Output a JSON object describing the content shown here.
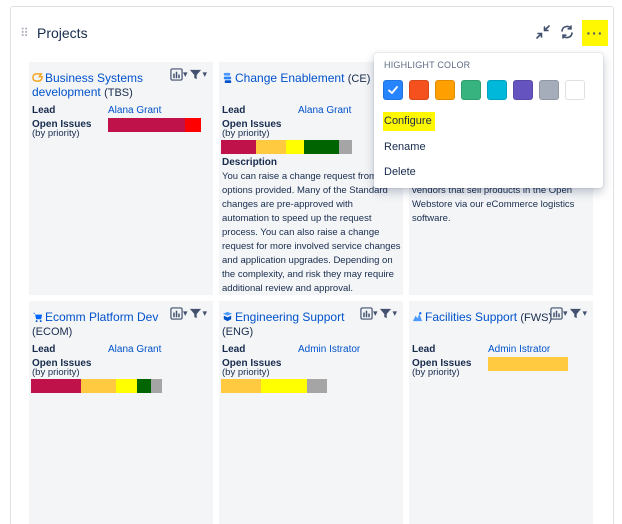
{
  "panel": {
    "title": "Projects",
    "drag_glyph": "⠿",
    "more_label": "···"
  },
  "cards": [
    {
      "name": "Business Systems development",
      "key": "(TBS)",
      "icon": "project-icon",
      "icon_color": "#f5a623",
      "lead_label": "Lead",
      "lead": "Alana Grant",
      "open_issues_label": "Open Issues",
      "by_priority": "(by priority)",
      "priority_bar": [
        {
          "color": "#c0124a",
          "share": 0.83
        },
        {
          "color": "#ff0000",
          "share": 0.17
        }
      ]
    },
    {
      "name": "Change Enablement",
      "key": "(CE)",
      "icon": "service-desk-icon",
      "icon_color": "#2684ff",
      "lead_label": "Lead",
      "lead": "Alana Grant",
      "open_issues_label": "Open Issues",
      "by_priority": "(by priority)",
      "priority_bar": [
        {
          "color": "#c0124a",
          "share": 0.27
        },
        {
          "color": "#ffc940",
          "share": 0.23
        },
        {
          "color": "#ffff00",
          "share": 0.13
        },
        {
          "color": "#006400",
          "share": 0.27
        },
        {
          "color": "#a5a5a5",
          "share": 0.1
        }
      ],
      "description_label": "Description",
      "description_lines": [
        "You can raise a change request from",
        "options provided. Many of the Standard",
        "changes are pre-approved with",
        "automation to speed up the request",
        "process. You can also raise a change",
        "request for more involved service changes",
        "and application upgrades. Depending on",
        "the complexity, and risk they may require",
        "additional review and approval."
      ]
    },
    {
      "description_lines": [
        "vendors that sell products in the Open",
        "Webstore via our eCommerce logistics",
        "software."
      ]
    },
    {
      "name": "Ecomm Platform Dev",
      "key": "(ECOM)",
      "icon": "shopping-icon",
      "icon_color": "#0065ff",
      "lead_label": "Lead",
      "lead": "Alana Grant",
      "open_issues_label": "Open Issues",
      "by_priority": "(by priority)",
      "priority_bar": [
        {
          "color": "#c0124a",
          "share": 0.38
        },
        {
          "color": "#ffc940",
          "share": 0.27
        },
        {
          "color": "#ffff00",
          "share": 0.16
        },
        {
          "color": "#006400",
          "share": 0.11
        },
        {
          "color": "#a5a5a5",
          "share": 0.08
        }
      ]
    },
    {
      "name": "Engineering Support",
      "key": "(ENG)",
      "icon": "engineering-icon",
      "icon_color": "#0052cc",
      "lead_label": "Lead",
      "lead": "Admin Istrator",
      "open_issues_label": "Open Issues",
      "by_priority": "(by priority)",
      "priority_bar": [
        {
          "color": "#ffc940",
          "share": 0.38
        },
        {
          "color": "#ffff00",
          "share": 0.43
        },
        {
          "color": "#a5a5a5",
          "share": 0.19
        }
      ]
    },
    {
      "name": "Facilities Support",
      "key": "(FWS)",
      "icon": "facilities-icon",
      "icon_color": "#4c9aff",
      "lead_label": "Lead",
      "lead": "Admin Istrator",
      "open_issues_label": "Open Issues",
      "by_priority": "(by priority)",
      "priority_bar": [
        {
          "color": "#ffc940",
          "share": 1.0
        }
      ]
    }
  ],
  "dropdown": {
    "heading": "HIGHLIGHT COLOR",
    "swatches": [
      {
        "color": "#2684ff",
        "selected": true
      },
      {
        "color": "#f4511e",
        "selected": false
      },
      {
        "color": "#ffa000",
        "selected": false
      },
      {
        "color": "#36b37e",
        "selected": false
      },
      {
        "color": "#00b8d9",
        "selected": false
      },
      {
        "color": "#6554c0",
        "selected": false
      },
      {
        "color": "#a5adba",
        "selected": false
      },
      {
        "color": "#ffffff",
        "selected": false
      }
    ],
    "items": [
      "Configure",
      "Rename",
      "Delete"
    ]
  },
  "colors": {
    "link": "#0052cc",
    "text": "#172b4d",
    "card_bg": "#f4f5f7",
    "highlight": "#fff800"
  }
}
